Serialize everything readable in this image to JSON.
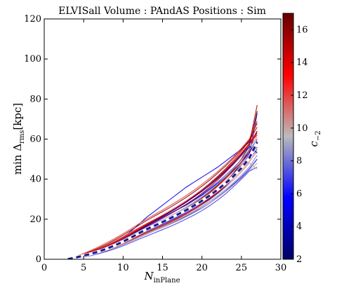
{
  "chart_data": {
    "type": "line",
    "title": "ELVISall   Volume : PAndAS   Positions : Sim",
    "xlabel_main": "N",
    "xlabel_sub": "inPlane",
    "ylabel_main": "min Δ",
    "ylabel_sub": "rms",
    "ylabel_unit": "[kpc]",
    "xlim": [
      0,
      30
    ],
    "ylim": [
      0,
      120
    ],
    "xticks": [
      "0",
      "5",
      "10",
      "15",
      "20",
      "25",
      "30"
    ],
    "yticks": [
      "0",
      "20",
      "40",
      "60",
      "80",
      "100",
      "120"
    ],
    "grid": false,
    "colorbar": {
      "label_main": "c",
      "label_sub": "−2",
      "range": [
        2,
        17
      ],
      "ticks": [
        "2",
        "4",
        "6",
        "8",
        "10",
        "12",
        "14",
        "16"
      ],
      "colors": [
        "#000066",
        "#0000ff",
        "#bbbbbb",
        "#ff0000",
        "#660000"
      ]
    },
    "x": [
      3,
      4,
      5,
      6,
      7,
      8,
      9,
      10,
      11,
      12,
      13,
      14,
      15,
      16,
      17,
      18,
      19,
      20,
      21,
      22,
      23,
      24,
      25,
      26,
      27
    ],
    "mean_series": {
      "style": "dashed",
      "values": [
        0.1,
        0.9,
        1.8,
        2.8,
        4.0,
        5.4,
        7.0,
        8.8,
        10.8,
        13.0,
        15.0,
        16.8,
        18.6,
        20.5,
        22.5,
        24.5,
        26.8,
        29.2,
        31.9,
        34.8,
        38.0,
        41.5,
        45.5,
        50.5,
        58.5
      ]
    },
    "series": [
      {
        "c": 2.5,
        "values": [
          0.2,
          0.8,
          1.5,
          2.5,
          3.5,
          4.8,
          6.3,
          8.0,
          10.0,
          12.0,
          14.0,
          16.0,
          17.6,
          19.5,
          21.5,
          23.5,
          25.5,
          28.0,
          31.0,
          34.5,
          38.5,
          43.0,
          48.0,
          55.0,
          64.0
        ]
      },
      {
        "c": 3.0,
        "values": [
          0.1,
          0.9,
          2.0,
          3.2,
          4.5,
          6.0,
          7.5,
          9.3,
          11.0,
          13.0,
          14.5,
          16.0,
          17.5,
          19.2,
          21.0,
          23.0,
          25.0,
          27.5,
          30.0,
          33.0,
          36.5,
          40.5,
          45.0,
          51.0,
          58.0
        ]
      },
      {
        "c": 3.8,
        "values": [
          0.3,
          1.2,
          2.2,
          3.5,
          5.0,
          6.8,
          8.5,
          10.5,
          12.7,
          15.0,
          17.0,
          19.0,
          21.0,
          23.0,
          25.0,
          27.0,
          29.5,
          32.0,
          35.0,
          38.0,
          41.0,
          44.5,
          48.5,
          53.0,
          60.0
        ]
      },
      {
        "c": 4.5,
        "values": [
          0.1,
          0.6,
          1.4,
          2.3,
          3.3,
          4.5,
          6.0,
          7.5,
          9.3,
          11.0,
          12.8,
          14.5,
          16.0,
          17.8,
          19.5,
          21.5,
          23.5,
          25.5,
          28.0,
          31.0,
          34.0,
          37.5,
          41.0,
          45.0,
          50.0
        ]
      },
      {
        "c": 5.0,
        "values": [
          0.2,
          1.0,
          2.1,
          3.4,
          4.8,
          6.5,
          8.6,
          11.0,
          14.0,
          17.5,
          21.0,
          24.0,
          27.0,
          30.0,
          33.0,
          36.0,
          38.5,
          41.0,
          43.5,
          46.0,
          49.0,
          52.0,
          55.0,
          58.5,
          62.0
        ]
      },
      {
        "c": 5.5,
        "values": [
          0.1,
          0.7,
          1.7,
          2.8,
          4.0,
          5.5,
          7.0,
          8.8,
          10.6,
          12.5,
          14.2,
          16.0,
          17.8,
          19.6,
          21.6,
          23.6,
          26.0,
          28.5,
          31.5,
          34.5,
          38.0,
          42.0,
          46.5,
          52.0,
          73.0
        ]
      },
      {
        "c": 6.0,
        "values": [
          0.2,
          1.0,
          2.0,
          3.2,
          4.5,
          6.0,
          7.7,
          9.6,
          11.8,
          14.0,
          16.2,
          18.3,
          20.5,
          22.7,
          25.0,
          27.3,
          29.7,
          32.2,
          35.0,
          38.0,
          41.2,
          44.6,
          48.3,
          52.5,
          57.0
        ]
      },
      {
        "c": 6.8,
        "values": [
          0.1,
          0.8,
          1.6,
          2.6,
          3.8,
          5.1,
          6.6,
          8.2,
          10.0,
          12.0,
          13.9,
          15.7,
          17.4,
          19.3,
          21.2,
          23.3,
          25.5,
          28.0,
          30.8,
          34.0,
          37.5,
          41.2,
          45.5,
          50.0,
          55.0
        ]
      },
      {
        "c": 7.5,
        "values": [
          0.3,
          1.1,
          2.2,
          3.5,
          5.0,
          6.6,
          8.4,
          10.4,
          12.5,
          14.8,
          17.0,
          19.0,
          21.0,
          23.0,
          25.2,
          27.5,
          30.0,
          32.7,
          35.5,
          38.6,
          42.0,
          45.7,
          49.7,
          54.0,
          59.0
        ]
      },
      {
        "c": 8.2,
        "values": [
          0.1,
          0.6,
          1.3,
          2.2,
          3.2,
          4.4,
          5.8,
          7.3,
          9.0,
          10.8,
          12.5,
          14.3,
          16.0,
          17.8,
          19.7,
          21.7,
          23.8,
          26.2,
          28.8,
          31.6,
          34.8,
          38.2,
          41.8,
          46.0,
          52.0
        ]
      },
      {
        "c": 9.0,
        "values": [
          0.2,
          0.9,
          1.9,
          3.0,
          4.3,
          5.8,
          7.4,
          9.2,
          11.2,
          13.3,
          15.4,
          17.3,
          19.2,
          21.2,
          23.4,
          25.7,
          28.2,
          30.9,
          33.8,
          37.0,
          40.4,
          44.0,
          48.0,
          52.4,
          57.5
        ]
      },
      {
        "c": 9.8,
        "values": [
          0.1,
          0.8,
          1.6,
          2.5,
          3.6,
          4.8,
          6.2,
          7.7,
          9.3,
          11.0,
          12.6,
          14.2,
          15.8,
          17.4,
          19.2,
          21.1,
          23.2,
          25.4,
          28.0,
          30.8,
          33.8,
          37.0,
          40.5,
          44.2,
          48.0
        ]
      },
      {
        "c": 10.5,
        "values": [
          0.3,
          1.3,
          2.5,
          3.9,
          5.5,
          7.3,
          9.3,
          11.4,
          13.6,
          15.8,
          17.9,
          19.9,
          21.9,
          24.0,
          26.3,
          28.7,
          31.3,
          34.0,
          37.0,
          40.2,
          43.6,
          47.3,
          51.4,
          55.8,
          61.0
        ]
      },
      {
        "c": 11.2,
        "values": [
          0.1,
          0.7,
          1.5,
          2.5,
          3.7,
          5.0,
          6.5,
          8.1,
          9.9,
          11.8,
          13.6,
          15.4,
          17.1,
          18.9,
          20.9,
          23.0,
          25.3,
          27.8,
          30.5,
          33.5,
          36.8,
          40.4,
          44.3,
          48.8,
          54.0
        ]
      },
      {
        "c": 11.8,
        "values": [
          0.2,
          1.0,
          2.1,
          3.4,
          4.9,
          6.6,
          8.5,
          10.6,
          12.9,
          15.3,
          17.6,
          19.8,
          22.0,
          24.3,
          26.7,
          29.2,
          31.8,
          34.7,
          37.8,
          41.1,
          44.7,
          48.6,
          52.8,
          57.5,
          62.0
        ]
      },
      {
        "c": 12.4,
        "values": [
          0.1,
          0.6,
          1.4,
          2.3,
          3.4,
          4.6,
          6.0,
          7.6,
          9.4,
          11.3,
          13.1,
          14.9,
          16.6,
          18.4,
          20.4,
          22.6,
          25.0,
          27.6,
          30.5,
          33.7,
          37.2,
          41.0,
          45.2,
          50.0,
          60.0
        ]
      },
      {
        "c": 13.0,
        "values": [
          0.3,
          1.2,
          2.4,
          3.8,
          5.3,
          7.0,
          8.9,
          11.0,
          13.2,
          15.5,
          17.7,
          19.8,
          21.8,
          23.9,
          26.1,
          28.5,
          31.1,
          33.9,
          37.0,
          40.3,
          44.0,
          48.0,
          52.4,
          57.4,
          63.0
        ]
      },
      {
        "c": 13.6,
        "values": [
          0.1,
          0.9,
          1.8,
          2.9,
          4.1,
          5.5,
          7.1,
          8.9,
          10.8,
          12.8,
          14.8,
          16.7,
          18.5,
          20.4,
          22.5,
          24.8,
          27.3,
          30.0,
          33.1,
          36.5,
          40.2,
          44.2,
          48.7,
          53.8,
          58.0
        ]
      },
      {
        "c": 14.2,
        "values": [
          0.2,
          1.1,
          2.2,
          3.5,
          5.0,
          6.7,
          8.5,
          10.5,
          12.7,
          15.0,
          17.3,
          19.4,
          21.5,
          23.7,
          26.0,
          28.5,
          31.2,
          34.1,
          37.3,
          40.8,
          44.5,
          48.6,
          53.0,
          57.8,
          64.0
        ]
      },
      {
        "c": 14.8,
        "values": [
          0.1,
          0.7,
          1.5,
          2.4,
          3.5,
          4.8,
          6.2,
          7.8,
          9.6,
          11.5,
          13.3,
          15.1,
          16.8,
          18.6,
          20.6,
          22.7,
          25.0,
          27.6,
          30.4,
          33.5,
          36.9,
          40.7,
          45.0,
          50.4,
          58.0
        ]
      },
      {
        "c": 15.3,
        "values": [
          0.2,
          1.0,
          2.1,
          3.4,
          4.8,
          6.4,
          8.2,
          10.2,
          12.4,
          14.8,
          17.1,
          19.3,
          21.5,
          23.8,
          26.2,
          28.8,
          31.6,
          34.6,
          37.9,
          41.4,
          45.2,
          49.4,
          54.0,
          59.2,
          66.0
        ]
      },
      {
        "c": 15.8,
        "values": [
          0.1,
          0.8,
          1.7,
          2.7,
          3.9,
          5.3,
          6.8,
          8.5,
          10.4,
          12.4,
          14.3,
          16.2,
          18.0,
          19.9,
          22.0,
          24.2,
          26.6,
          29.3,
          32.2,
          35.4,
          38.9,
          42.7,
          46.9,
          51.6,
          56.0
        ]
      },
      {
        "c": 16.3,
        "values": [
          0.3,
          1.3,
          2.6,
          4.1,
          5.8,
          7.7,
          9.8,
          12.1,
          14.5,
          17.0,
          19.4,
          21.6,
          23.8,
          26.0,
          28.4,
          30.9,
          33.6,
          36.5,
          39.6,
          43.0,
          46.6,
          50.5,
          54.8,
          59.5,
          68.0
        ]
      },
      {
        "c": 16.8,
        "values": [
          0.1,
          0.9,
          1.9,
          3.0,
          4.3,
          5.7,
          7.3,
          9.1,
          11.0,
          13.1,
          15.1,
          17.0,
          18.9,
          20.9,
          23.0,
          25.3,
          27.8,
          30.6,
          33.6,
          37.0,
          40.8,
          45.0,
          50.0,
          56.5,
          74.0
        ]
      },
      {
        "c": 7.0,
        "values": [
          0.1,
          0.5,
          1.1,
          1.9,
          2.9,
          4.0,
          5.3,
          6.7,
          8.3,
          10.0,
          11.6,
          13.2,
          14.8,
          16.4,
          18.2,
          20.1,
          22.1,
          24.3,
          26.8,
          29.6,
          32.7,
          36.2,
          40.0,
          44.0,
          46.0
        ]
      },
      {
        "c": 12.0,
        "values": [
          0.2,
          1.4,
          2.9,
          4.6,
          6.4,
          8.4,
          10.5,
          12.8,
          15.2,
          17.7,
          20.1,
          22.4,
          24.6,
          26.9,
          29.3,
          31.8,
          34.5,
          37.4,
          40.5,
          43.8,
          47.4,
          51.2,
          55.4,
          60.0,
          69.0
        ]
      },
      {
        "c": 10.0,
        "values": [
          0.1,
          0.7,
          1.4,
          2.3,
          3.4,
          4.6,
          6.0,
          7.6,
          9.3,
          11.1,
          12.9,
          14.6,
          16.3,
          18.1,
          20.0,
          22.1,
          24.4,
          26.9,
          29.6,
          32.6,
          35.9,
          39.6,
          43.6,
          48.0,
          45.0
        ]
      },
      {
        "c": 15.0,
        "values": [
          0.2,
          0.9,
          1.9,
          3.1,
          4.5,
          6.1,
          7.9,
          9.9,
          12.0,
          14.3,
          16.5,
          18.6,
          20.6,
          22.7,
          25.0,
          27.4,
          30.0,
          32.9,
          36.1,
          39.6,
          43.4,
          47.6,
          52.3,
          57.6,
          77.0
        ]
      },
      {
        "c": 4.0,
        "values": [
          0.1,
          0.8,
          1.8,
          3.0,
          4.4,
          6.0,
          7.8,
          9.8,
          12.0,
          14.4,
          16.8,
          19.1,
          21.3,
          23.6,
          26.0,
          28.5,
          31.2,
          34.0,
          37.1,
          40.4,
          44.0,
          47.9,
          52.0,
          56.5,
          53.0
        ]
      },
      {
        "c": 8.8,
        "values": [
          0.2,
          1.0,
          2.0,
          3.2,
          4.6,
          6.2,
          7.9,
          9.8,
          11.8,
          13.9,
          15.9,
          17.8,
          19.7,
          21.7,
          23.8,
          26.1,
          28.6,
          31.3,
          34.3,
          37.6,
          41.2,
          45.2,
          49.7,
          54.7,
          60.0
        ]
      }
    ]
  }
}
